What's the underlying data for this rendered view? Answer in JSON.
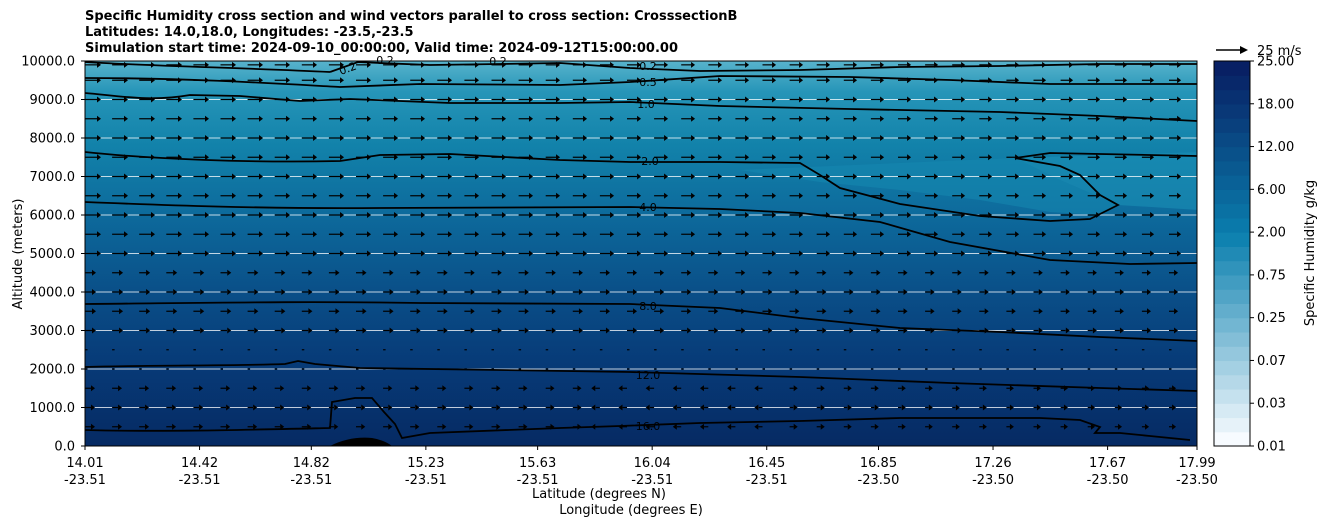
{
  "chart_data": {
    "type": "contour",
    "title_lines": [
      "Specific Humidity cross section and wind vectors parallel to cross section: CrosssectionB",
      "Latitudes: 14.0,18.0, Longitudes: -23.5,-23.5",
      "Simulation start time: 2024-09-10_00:00:00, Valid time: 2024-09-12T15:00:00.00"
    ],
    "xlabel": "Latitude (degrees N)",
    "xlabel2": "Longitude (degrees E)",
    "ylabel": "Altitude (meters)",
    "ylim": [
      0,
      10000
    ],
    "y_ticks": [
      "0.0",
      "1000.0",
      "2000.0",
      "3000.0",
      "4000.0",
      "5000.0",
      "6000.0",
      "7000.0",
      "8000.0",
      "9000.0",
      "10000.0"
    ],
    "x_ticks": [
      {
        "lat": "14.01",
        "lon": "-23.51"
      },
      {
        "lat": "14.42",
        "lon": "-23.51"
      },
      {
        "lat": "14.82",
        "lon": "-23.51"
      },
      {
        "lat": "15.23",
        "lon": "-23.51"
      },
      {
        "lat": "15.63",
        "lon": "-23.51"
      },
      {
        "lat": "16.04",
        "lon": "-23.51"
      },
      {
        "lat": "16.45",
        "lon": "-23.51"
      },
      {
        "lat": "16.85",
        "lon": "-23.50"
      },
      {
        "lat": "17.26",
        "lon": "-23.50"
      },
      {
        "lat": "17.67",
        "lon": "-23.50"
      },
      {
        "lat": "17.99",
        "lon": "-23.50"
      }
    ],
    "contour_levels": [
      {
        "label": "16.0",
        "altitude": 550
      },
      {
        "label": "12.0",
        "altitude": 1850
      },
      {
        "label": "8.0",
        "altitude": 3650
      },
      {
        "label": "4.0",
        "altitude": 6250
      },
      {
        "label": "2.0",
        "altitude": 7400
      },
      {
        "label": "1.0",
        "altitude": 8850
      },
      {
        "label": "0.5",
        "altitude": 9500
      },
      {
        "label": "0.2",
        "altitude": 9850
      },
      {
        "label": "0.2",
        "altitude": 9950
      },
      {
        "label": "0.2",
        "altitude": 9950
      }
    ],
    "colorbar": {
      "label": "Specific Humidity g/kg",
      "ticks": [
        "0.01",
        "0.03",
        "0.07",
        "0.25",
        "0.75",
        "2.00",
        "6.00",
        "12.00",
        "18.00",
        "25.00"
      ]
    },
    "wind_key": {
      "label": "25 m/s"
    }
  },
  "colors": {
    "low": "#f7fbff",
    "mid": "#0a7fae",
    "high": "#08306b",
    "contour": "#000000"
  }
}
